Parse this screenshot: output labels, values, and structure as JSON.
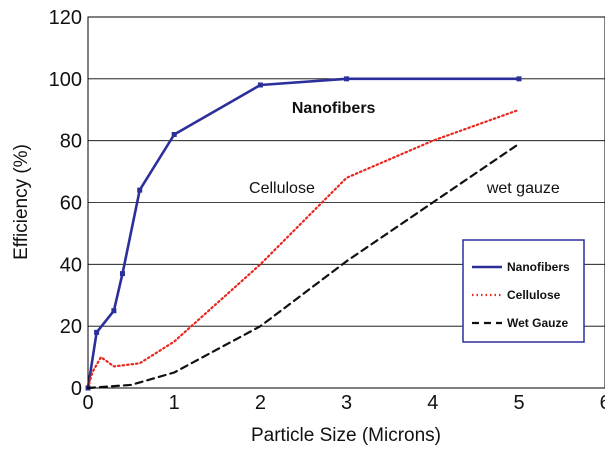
{
  "chart_data": {
    "type": "line",
    "xlabel": "Particle Size (Microns)",
    "ylabel": "Efficiency (%)",
    "xlim": [
      0,
      6
    ],
    "ylim": [
      0,
      120
    ],
    "xticks": [
      "0",
      "1",
      "2",
      "3",
      "4",
      "5",
      "6"
    ],
    "yticks": [
      "0",
      "20",
      "40",
      "60",
      "80",
      "100",
      "120"
    ],
    "grid": "horizontal",
    "legend_position": "lower-right",
    "series": [
      {
        "name": "Nanofibers",
        "color": "#2b2f9a",
        "style": "solid",
        "markers": true,
        "x": [
          0,
          0.1,
          0.3,
          0.4,
          0.6,
          1,
          2,
          3,
          5
        ],
        "y": [
          0,
          18,
          25,
          37,
          64,
          82,
          98,
          100,
          100
        ]
      },
      {
        "name": "Cellulose",
        "color": "#e8281e",
        "style": "dotted",
        "markers": false,
        "x": [
          0,
          0.05,
          0.15,
          0.3,
          0.6,
          1,
          2,
          3,
          4,
          5
        ],
        "y": [
          0,
          5,
          10,
          7,
          8,
          15,
          40,
          68,
          80,
          90
        ]
      },
      {
        "name": "Wet Gauze",
        "color": "#111111",
        "style": "dashed",
        "markers": false,
        "x": [
          0,
          0.5,
          1,
          2,
          3,
          4,
          5
        ],
        "y": [
          0,
          1,
          5,
          20,
          41,
          60,
          79
        ]
      }
    ],
    "annotations": [
      {
        "text": "Nanofibers",
        "x": 2.85,
        "y": 89,
        "bold": true
      },
      {
        "text": "Cellulose",
        "x": 2.25,
        "y": 63,
        "bold": false
      },
      {
        "text": "wet gauze",
        "x": 5.05,
        "y": 63,
        "bold": false
      }
    ]
  }
}
